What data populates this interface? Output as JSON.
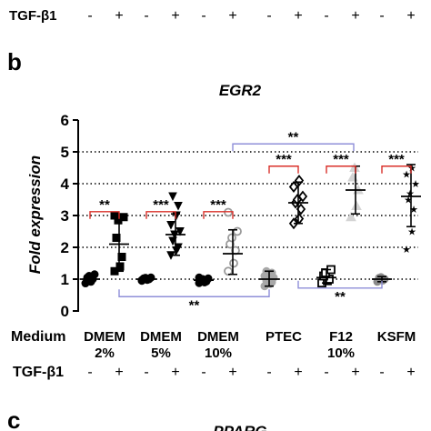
{
  "panels": {
    "b": "b",
    "c": "c"
  },
  "top_row": {
    "label": "TGF-β1",
    "signs": [
      "-",
      "+",
      "-",
      "+",
      "-",
      "+",
      "-",
      "+",
      "-",
      "+",
      "-",
      "+"
    ]
  },
  "bottom_row": {
    "label": "TGF-β1",
    "signs": [
      "-",
      "+",
      "-",
      "+",
      "-",
      "+",
      "-",
      "+",
      "-",
      "+",
      "-",
      "+"
    ]
  },
  "next_panel_title_fragment": "PPARG",
  "colors": {
    "red_bracket": "#d9302a",
    "blue_bracket": "#1f2fb8",
    "periwinkle_line": "#8f8fd8",
    "grid": "#000000"
  },
  "chart_data": {
    "type": "scatter",
    "title": "EGR2",
    "ylabel": "Fold expression",
    "ylim": [
      0,
      6
    ],
    "yticks": [
      "0",
      "1",
      "2",
      "3",
      "4",
      "5",
      "6"
    ],
    "reference_lines": [
      1,
      2,
      3,
      4,
      5
    ],
    "x_axis_title": "Medium",
    "groups": [
      {
        "medium": [
          "DMEM",
          "2%"
        ]
      },
      {
        "medium": [
          "DMEM",
          "5%"
        ]
      },
      {
        "medium": [
          "DMEM",
          "10%"
        ]
      },
      {
        "medium": [
          "PTEC"
        ]
      },
      {
        "medium": [
          "F12",
          "10%"
        ]
      },
      {
        "medium": [
          "KSFM"
        ]
      }
    ],
    "series": [
      {
        "group": 0,
        "treatment": "-",
        "marker": "circle-filled",
        "color": "#000000",
        "mean": 1.0,
        "sd_low": 0.88,
        "sd_high": 1.12,
        "points": [
          0.87,
          0.92,
          1.0,
          1.05,
          1.1,
          1.15
        ]
      },
      {
        "group": 0,
        "treatment": "+",
        "marker": "square-filled",
        "color": "#000000",
        "mean": 2.1,
        "sd_low": 1.25,
        "sd_high": 2.95,
        "points": [
          1.25,
          1.4,
          1.7,
          2.3,
          2.85,
          2.95,
          3.0
        ]
      },
      {
        "group": 1,
        "treatment": "-",
        "marker": "circle-filled",
        "color": "#000000",
        "mean": 1.0,
        "sd_low": 0.95,
        "sd_high": 1.05,
        "points": [
          0.95,
          0.98,
          1.0,
          1.02,
          1.04,
          1.05,
          0.97
        ]
      },
      {
        "group": 1,
        "treatment": "+",
        "marker": "triangle-down-filled",
        "color": "#000000",
        "mean": 2.4,
        "sd_low": 1.75,
        "sd_high": 3.05,
        "points": [
          1.75,
          1.9,
          2.0,
          2.2,
          2.4,
          2.5,
          2.7,
          3.0,
          3.3,
          3.6
        ]
      },
      {
        "group": 2,
        "treatment": "-",
        "marker": "circle-filled",
        "color": "#000000",
        "mean": 0.97,
        "sd_low": 0.88,
        "sd_high": 1.05,
        "points": [
          0.88,
          0.9,
          0.93,
          0.95,
          1.0,
          1.02,
          1.05
        ]
      },
      {
        "group": 2,
        "treatment": "+",
        "marker": "circle-open",
        "color": "#9a9a9a",
        "mean": 1.8,
        "sd_low": 1.15,
        "sd_high": 2.55,
        "points": [
          1.25,
          1.5,
          1.9,
          2.1,
          2.3,
          2.5,
          3.1
        ]
      },
      {
        "group": 3,
        "treatment": "-",
        "marker": "circle-filled",
        "color": "#a8a8a8",
        "mean": 1.0,
        "sd_low": 0.78,
        "sd_high": 1.25,
        "points": [
          0.78,
          0.85,
          0.9,
          0.95,
          1.0,
          1.05,
          1.1,
          1.15,
          1.2,
          1.25
        ]
      },
      {
        "group": 3,
        "treatment": "+",
        "marker": "diamond-open",
        "color": "#000000",
        "mean": 3.4,
        "sd_low": 2.75,
        "sd_high": 4.05,
        "points": [
          2.75,
          2.9,
          3.2,
          3.4,
          3.5,
          3.6,
          3.9,
          4.1
        ]
      },
      {
        "group": 4,
        "treatment": "-",
        "marker": "square-open",
        "color": "#000000",
        "mean": 1.05,
        "sd_low": 0.88,
        "sd_high": 1.3,
        "points": [
          0.88,
          0.95,
          1.0,
          1.1,
          1.2,
          1.3
        ]
      },
      {
        "group": 4,
        "treatment": "+",
        "marker": "triangle-up-filled",
        "color": "#d4d4d4",
        "mean": 3.8,
        "sd_low": 3.05,
        "sd_high": 4.55,
        "points": [
          2.95,
          3.3,
          3.8,
          4.2,
          4.5
        ]
      },
      {
        "group": 5,
        "treatment": "-",
        "marker": "circle-filled",
        "color": "#8a8a8a",
        "mean": 1.0,
        "sd_low": 0.92,
        "sd_high": 1.08,
        "points": [
          0.92,
          0.96,
          1.0,
          1.04,
          1.06
        ]
      },
      {
        "group": 5,
        "treatment": "+",
        "marker": "star",
        "color": "#000000",
        "mean": 3.6,
        "sd_low": 2.65,
        "sd_high": 4.6,
        "points": [
          1.95,
          2.5,
          3.2,
          3.5,
          3.7,
          4.0,
          4.3,
          4.5
        ]
      }
    ],
    "significance": [
      {
        "from": [
          0,
          "-"
        ],
        "to": [
          0,
          "+"
        ],
        "label": "**",
        "color": "red",
        "level": 3.12,
        "side": "above"
      },
      {
        "from": [
          1,
          "-"
        ],
        "to": [
          1,
          "+"
        ],
        "label": "***",
        "color": "red",
        "level": 3.12,
        "side": "above"
      },
      {
        "from": [
          2,
          "-"
        ],
        "to": [
          2,
          "+"
        ],
        "label": "***",
        "color": "red",
        "level": 3.12,
        "side": "above"
      },
      {
        "from": [
          3,
          "-"
        ],
        "to": [
          3,
          "+"
        ],
        "label": "***",
        "color": "red",
        "level": 4.55,
        "side": "above"
      },
      {
        "from": [
          4,
          "-"
        ],
        "to": [
          4,
          "+"
        ],
        "label": "***",
        "color": "red",
        "level": 4.55,
        "side": "above"
      },
      {
        "from": [
          5,
          "-"
        ],
        "to": [
          5,
          "+"
        ],
        "label": "***",
        "color": "red",
        "level": 4.55,
        "side": "above"
      },
      {
        "from": [
          3,
          "-"
        ],
        "to": [
          4,
          "-"
        ],
        "label": "**",
        "color": "blue",
        "level": 5.25,
        "side": "above",
        "span": "group-centers",
        "g0": 2,
        "g1": 4
      },
      {
        "from": [
          0,
          "-"
        ],
        "to": [
          3,
          "-"
        ],
        "label": "**",
        "color": "blue",
        "level": 0.45,
        "side": "below",
        "span": "minus",
        "g0": 0,
        "g1": 3
      },
      {
        "from": [
          3,
          "-"
        ],
        "to": [
          5,
          "-"
        ],
        "label": "**",
        "color": "blue",
        "level": 0.72,
        "side": "below",
        "span": "minus",
        "g0": 3,
        "g1": 5
      }
    ]
  }
}
